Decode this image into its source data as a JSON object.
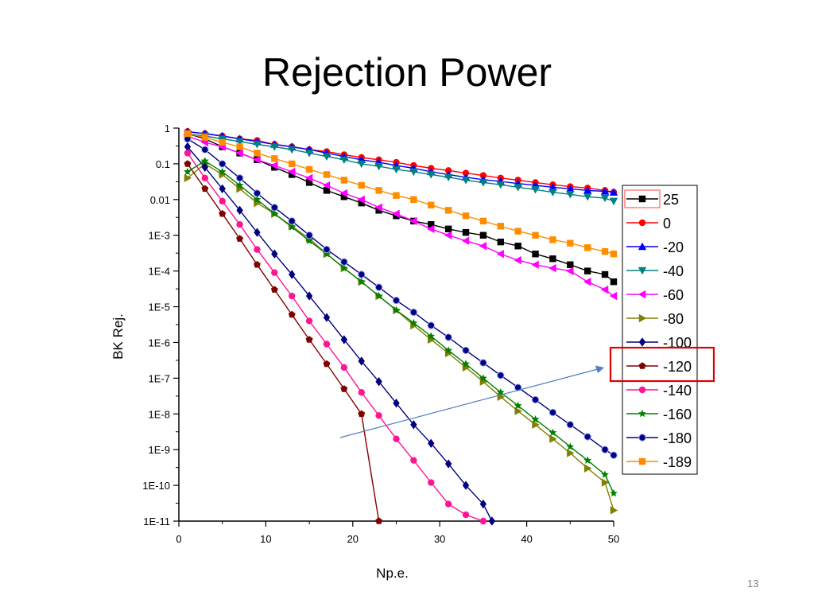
{
  "slide": {
    "title": "Rejection Power",
    "page_number": "13"
  },
  "chart_data": {
    "type": "line",
    "title": "",
    "xlabel": "Np.e.",
    "ylabel": "BK Rej.",
    "xlim": [
      0,
      50
    ],
    "x_ticks": [
      0,
      10,
      20,
      30,
      40,
      50
    ],
    "x_tick_labels": [
      "0",
      "10",
      "20",
      "30",
      "40",
      "50"
    ],
    "y_scale": "log",
    "ylim": [
      1e-11,
      1
    ],
    "y_ticks": [
      1,
      0.1,
      0.01,
      0.001,
      0.0001,
      1e-05,
      1e-06,
      1e-07,
      1e-08,
      1e-09,
      1e-10,
      1e-11
    ],
    "y_tick_labels": [
      "1",
      "0.1",
      "0.01",
      "1E-3",
      "1E-4",
      "1E-5",
      "1E-6",
      "1E-7",
      "1E-8",
      "1E-9",
      "1E-10",
      "1E-11"
    ],
    "grid": false,
    "legend_position": "right",
    "highlighted_series": "-120",
    "annotation": "arrow from the -120 curve toward the highlighted -120 legend entry",
    "series": [
      {
        "name": "25",
        "color": "#000000",
        "marker": "square",
        "x": [
          1,
          3,
          5,
          7,
          9,
          11,
          13,
          15,
          17,
          19,
          21,
          23,
          25,
          27,
          29,
          31,
          33,
          35,
          37,
          39,
          41,
          43,
          45,
          47,
          49,
          50
        ],
        "y": [
          0.7,
          0.5,
          0.3,
          0.2,
          0.13,
          0.08,
          0.05,
          0.03,
          0.018,
          0.012,
          0.008,
          0.005,
          0.0035,
          0.0025,
          0.002,
          0.0015,
          0.0012,
          0.001,
          0.00065,
          0.0005,
          0.0003,
          0.00022,
          0.00015,
          0.0001,
          8e-05,
          5e-05
        ]
      },
      {
        "name": "0",
        "color": "#ff0000",
        "marker": "circle",
        "x": [
          1,
          3,
          5,
          7,
          9,
          11,
          13,
          15,
          17,
          19,
          21,
          23,
          25,
          27,
          29,
          31,
          33,
          35,
          37,
          39,
          41,
          43,
          45,
          47,
          49,
          50
        ],
        "y": [
          0.8,
          0.7,
          0.6,
          0.5,
          0.45,
          0.35,
          0.3,
          0.25,
          0.22,
          0.18,
          0.15,
          0.13,
          0.11,
          0.09,
          0.075,
          0.065,
          0.055,
          0.047,
          0.04,
          0.035,
          0.03,
          0.026,
          0.023,
          0.021,
          0.018,
          0.016
        ]
      },
      {
        "name": "-20",
        "color": "#0000ff",
        "marker": "triangle-up",
        "x": [
          1,
          3,
          5,
          7,
          9,
          11,
          13,
          15,
          17,
          19,
          21,
          23,
          25,
          27,
          29,
          31,
          33,
          35,
          37,
          39,
          41,
          43,
          45,
          47,
          49,
          50
        ],
        "y": [
          0.8,
          0.7,
          0.6,
          0.5,
          0.42,
          0.35,
          0.3,
          0.25,
          0.2,
          0.16,
          0.13,
          0.11,
          0.09,
          0.075,
          0.06,
          0.05,
          0.042,
          0.036,
          0.032,
          0.028,
          0.025,
          0.022,
          0.02,
          0.018,
          0.017,
          0.016
        ]
      },
      {
        "name": "-40",
        "color": "#008080",
        "marker": "triangle-down",
        "x": [
          1,
          3,
          5,
          7,
          9,
          11,
          13,
          15,
          17,
          19,
          21,
          23,
          25,
          27,
          29,
          31,
          33,
          35,
          37,
          39,
          41,
          43,
          45,
          47,
          49,
          50
        ],
        "y": [
          0.7,
          0.6,
          0.5,
          0.42,
          0.35,
          0.3,
          0.25,
          0.2,
          0.16,
          0.13,
          0.1,
          0.085,
          0.07,
          0.06,
          0.05,
          0.042,
          0.035,
          0.03,
          0.026,
          0.022,
          0.019,
          0.016,
          0.014,
          0.012,
          0.011,
          0.009
        ]
      },
      {
        "name": "-60",
        "color": "#ff00ff",
        "marker": "triangle-left",
        "x": [
          1,
          3,
          5,
          7,
          9,
          11,
          13,
          15,
          17,
          19,
          21,
          23,
          25,
          27,
          29,
          31,
          33,
          35,
          37,
          39,
          41,
          43,
          45,
          47,
          49,
          50
        ],
        "y": [
          0.6,
          0.4,
          0.3,
          0.2,
          0.13,
          0.09,
          0.06,
          0.04,
          0.025,
          0.015,
          0.01,
          0.006,
          0.004,
          0.0025,
          0.0015,
          0.001,
          0.0007,
          0.0005,
          0.0003,
          0.0002,
          0.00015,
          0.00012,
          0.0001,
          5e-05,
          3e-05,
          2e-05
        ]
      },
      {
        "name": "-80",
        "color": "#808000",
        "marker": "triangle-right",
        "x": [
          1,
          3,
          5,
          7,
          9,
          11,
          13,
          15,
          17,
          19,
          21,
          23,
          25,
          27,
          29,
          31,
          33,
          35,
          37,
          39,
          41,
          43,
          45,
          47,
          49,
          50
        ],
        "y": [
          0.04,
          0.1,
          0.05,
          0.02,
          0.008,
          0.004,
          0.0018,
          0.0008,
          0.0003,
          0.00012,
          5e-05,
          2e-05,
          8e-06,
          3e-06,
          1.2e-06,
          5e-07,
          2e-07,
          8e-08,
          3e-08,
          1.2e-08,
          5e-09,
          2e-09,
          8e-10,
          3e-10,
          1.2e-10,
          2e-11
        ]
      },
      {
        "name": "-100",
        "color": "#000080",
        "marker": "diamond",
        "x": [
          1,
          3,
          5,
          7,
          9,
          11,
          13,
          15,
          17,
          19,
          21,
          23,
          25,
          27,
          29,
          31,
          33,
          35,
          36
        ],
        "y": [
          0.3,
          0.08,
          0.02,
          0.005,
          0.0012,
          0.0003,
          8e-05,
          2e-05,
          5e-06,
          1.2e-06,
          3e-07,
          8e-08,
          2e-08,
          5e-09,
          1.5e-09,
          4e-10,
          1e-10,
          3e-11,
          1e-11
        ]
      },
      {
        "name": "-120",
        "color": "#800000",
        "marker": "pentagon",
        "x": [
          1,
          3,
          5,
          7,
          9,
          11,
          13,
          15,
          17,
          19,
          21,
          23
        ],
        "y": [
          0.1,
          0.02,
          0.004,
          0.0008,
          0.00015,
          3e-05,
          6e-06,
          1.2e-06,
          2.5e-07,
          5e-08,
          1e-08,
          1e-11
        ]
      },
      {
        "name": "-140",
        "color": "#ff1493",
        "marker": "circle",
        "x": [
          1,
          3,
          5,
          7,
          9,
          11,
          13,
          15,
          17,
          19,
          21,
          23,
          25,
          27,
          29,
          31,
          33,
          35
        ],
        "y": [
          0.2,
          0.04,
          0.009,
          0.002,
          0.0004,
          9e-05,
          2e-05,
          4e-06,
          9e-07,
          2e-07,
          4e-08,
          9e-09,
          2e-09,
          5e-10,
          1.2e-10,
          3e-11,
          1.5e-11,
          1e-11
        ]
      },
      {
        "name": "-160",
        "color": "#008000",
        "marker": "star",
        "x": [
          1,
          3,
          5,
          7,
          9,
          11,
          13,
          15,
          17,
          19,
          21,
          23,
          25,
          27,
          29,
          31,
          33,
          35,
          37,
          39,
          41,
          43,
          45,
          47,
          49,
          50
        ],
        "y": [
          0.06,
          0.12,
          0.06,
          0.025,
          0.01,
          0.004,
          0.0017,
          0.0007,
          0.0003,
          0.00012,
          5e-05,
          2e-05,
          8e-06,
          3.5e-06,
          1.5e-06,
          6e-07,
          2.5e-07,
          1e-07,
          4e-08,
          1.7e-08,
          7e-09,
          3e-09,
          1.2e-09,
          5e-10,
          2e-10,
          6e-11
        ]
      },
      {
        "name": "-180",
        "color": "#000080",
        "marker": "sphere",
        "x": [
          1,
          3,
          5,
          7,
          9,
          11,
          13,
          15,
          17,
          19,
          21,
          23,
          25,
          27,
          29,
          31,
          33,
          35,
          37,
          39,
          41,
          43,
          45,
          47,
          49,
          50
        ],
        "y": [
          0.5,
          0.25,
          0.1,
          0.04,
          0.015,
          0.006,
          0.0025,
          0.001,
          0.0004,
          0.00018,
          8e-05,
          3.5e-05,
          1.5e-05,
          7e-06,
          3e-06,
          1.4e-06,
          6e-07,
          2.7e-07,
          1.2e-07,
          5.5e-08,
          2.5e-08,
          1.1e-08,
          5e-09,
          2.3e-09,
          1e-09,
          7e-10
        ]
      },
      {
        "name": "-189",
        "color": "#ff8c00",
        "marker": "square",
        "x": [
          1,
          3,
          5,
          7,
          9,
          11,
          13,
          15,
          17,
          19,
          21,
          23,
          25,
          27,
          29,
          31,
          33,
          35,
          37,
          39,
          41,
          43,
          45,
          47,
          49,
          50
        ],
        "y": [
          0.7,
          0.55,
          0.4,
          0.3,
          0.2,
          0.14,
          0.1,
          0.07,
          0.05,
          0.035,
          0.025,
          0.018,
          0.013,
          0.01,
          0.007,
          0.005,
          0.0035,
          0.0025,
          0.0018,
          0.0013,
          0.001,
          0.00075,
          0.0006,
          0.00045,
          0.00035,
          0.0003
        ]
      }
    ]
  }
}
